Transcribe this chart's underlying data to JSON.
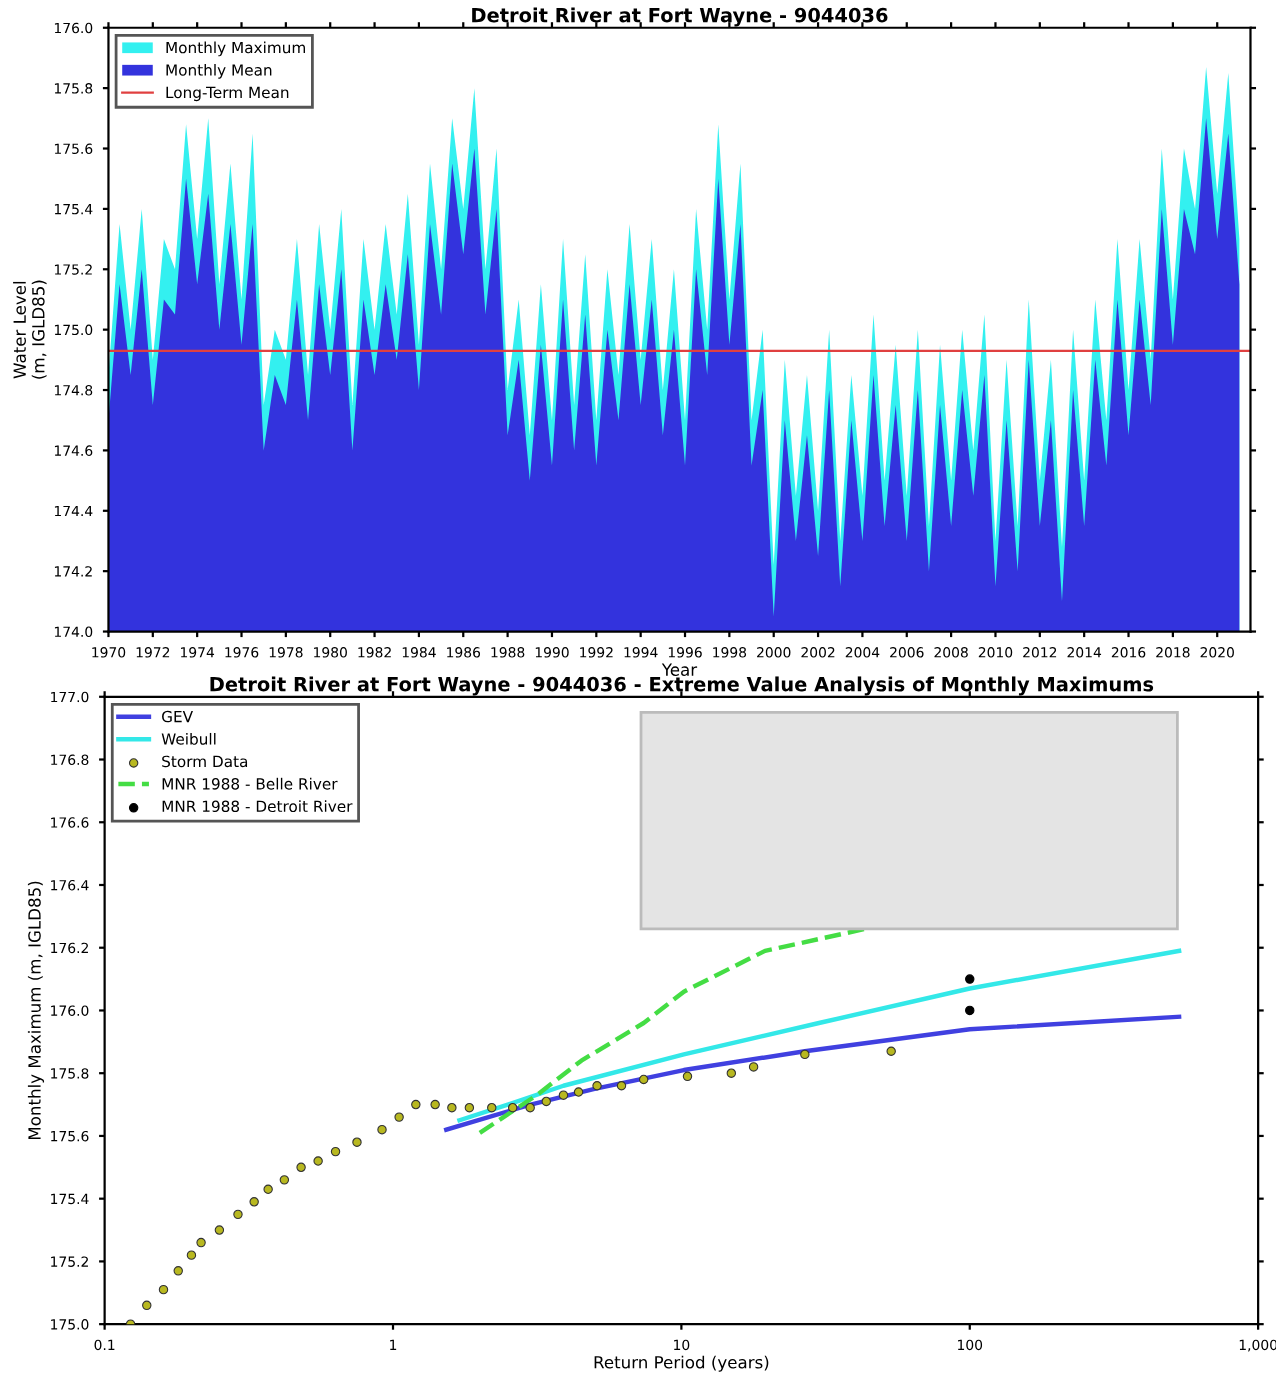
{
  "chart_data": [
    {
      "type": "area",
      "title": "Detroit River at Fort Wayne - 9044036",
      "xlabel": "Year",
      "ylabel": "Water Level\n(m, IGLD85)",
      "x": [
        1970,
        1970.5,
        1971,
        1971.5,
        1972,
        1972.5,
        1973,
        1973.5,
        1974,
        1974.5,
        1975,
        1975.5,
        1976,
        1976.5,
        1977,
        1977.5,
        1978,
        1978.5,
        1979,
        1979.5,
        1980,
        1980.5,
        1981,
        1981.5,
        1982,
        1982.5,
        1983,
        1983.5,
        1984,
        1984.5,
        1985,
        1985.5,
        1986,
        1986.5,
        1987,
        1987.5,
        1988,
        1988.5,
        1989,
        1989.5,
        1990,
        1990.5,
        1991,
        1991.5,
        1992,
        1992.5,
        1993,
        1993.5,
        1994,
        1994.5,
        1995,
        1995.5,
        1996,
        1996.5,
        1997,
        1997.5,
        1998,
        1998.5,
        1999,
        1999.5,
        2000,
        2000.5,
        2001,
        2001.5,
        2002,
        2002.5,
        2003,
        2003.5,
        2004,
        2004.5,
        2005,
        2005.5,
        2006,
        2006.5,
        2007,
        2007.5,
        2008,
        2008.5,
        2009,
        2009.5,
        2010,
        2010.5,
        2011,
        2011.5,
        2012,
        2012.5,
        2013,
        2013.5,
        2014,
        2014.5,
        2015,
        2015.5,
        2016,
        2016.5,
        2017,
        2017.5,
        2018,
        2018.5,
        2019,
        2019.5,
        2020,
        2020.5,
        2021
      ],
      "series": [
        {
          "name": "Monthly Maximum",
          "color": "#33f0f0",
          "values": [
            174.85,
            175.35,
            175.0,
            175.4,
            174.9,
            175.3,
            175.2,
            175.68,
            175.3,
            175.7,
            175.15,
            175.55,
            175.1,
            175.65,
            174.75,
            175.0,
            174.9,
            175.3,
            174.85,
            175.35,
            175.0,
            175.4,
            174.75,
            175.3,
            175.0,
            175.35,
            175.05,
            175.45,
            174.95,
            175.55,
            175.2,
            175.7,
            175.4,
            175.8,
            175.2,
            175.6,
            174.8,
            175.1,
            174.65,
            175.15,
            174.7,
            175.3,
            174.75,
            175.25,
            174.7,
            175.2,
            174.85,
            175.35,
            174.9,
            175.3,
            174.8,
            175.2,
            174.7,
            175.4,
            175.0,
            175.68,
            175.1,
            175.55,
            174.7,
            175.0,
            174.22,
            174.9,
            174.45,
            174.85,
            174.4,
            175.0,
            174.3,
            174.85,
            174.45,
            175.05,
            174.5,
            174.95,
            174.45,
            175.0,
            174.35,
            174.95,
            174.5,
            175.0,
            174.6,
            175.05,
            174.3,
            174.9,
            174.35,
            175.1,
            174.5,
            174.9,
            174.28,
            175.0,
            174.5,
            175.1,
            174.7,
            175.3,
            174.8,
            175.3,
            174.9,
            175.6,
            175.1,
            175.6,
            175.4,
            175.87,
            175.45,
            175.85,
            175.3
          ]
        },
        {
          "name": "Monthly Mean",
          "color": "#3333dd",
          "values": [
            174.7,
            175.15,
            174.85,
            175.2,
            174.75,
            175.1,
            175.05,
            175.5,
            175.15,
            175.45,
            175.0,
            175.35,
            174.95,
            175.35,
            174.6,
            174.85,
            174.75,
            175.1,
            174.7,
            175.15,
            174.85,
            175.2,
            174.6,
            175.1,
            174.85,
            175.15,
            174.9,
            175.25,
            174.8,
            175.35,
            175.05,
            175.55,
            175.25,
            175.6,
            175.05,
            175.4,
            174.65,
            174.9,
            174.5,
            174.95,
            174.55,
            175.1,
            174.6,
            175.05,
            174.55,
            175.0,
            174.7,
            175.15,
            174.75,
            175.1,
            174.65,
            175.0,
            174.55,
            175.2,
            174.85,
            175.5,
            174.95,
            175.35,
            174.55,
            174.8,
            174.05,
            174.7,
            174.3,
            174.65,
            174.25,
            174.8,
            174.15,
            174.7,
            174.3,
            174.85,
            174.35,
            174.75,
            174.3,
            174.8,
            174.2,
            174.75,
            174.35,
            174.8,
            174.45,
            174.85,
            174.15,
            174.7,
            174.2,
            174.9,
            174.35,
            174.7,
            174.1,
            174.8,
            174.35,
            174.9,
            174.55,
            175.1,
            174.65,
            175.1,
            174.75,
            175.4,
            174.95,
            175.4,
            175.25,
            175.7,
            175.3,
            175.65,
            175.15
          ]
        }
      ],
      "ref_lines": [
        {
          "axis": "y",
          "value": 174.93,
          "label": "Long-Term Mean",
          "color": "#e04040"
        }
      ],
      "xlim": [
        1970,
        2021.5
      ],
      "xticks": [
        1970,
        1972,
        1974,
        1976,
        1978,
        1980,
        1982,
        1984,
        1986,
        1988,
        1990,
        1992,
        1994,
        1996,
        1998,
        2000,
        2002,
        2004,
        2006,
        2008,
        2010,
        2012,
        2014,
        2016,
        2018,
        2020
      ],
      "ylim": [
        174.0,
        176.0
      ],
      "yticks": [
        {
          "value": 174.0,
          "label": "174.0"
        },
        {
          "value": 174.2,
          "label": "174.2"
        },
        {
          "value": 174.4,
          "label": "174.4"
        },
        {
          "value": 174.6,
          "label": "174.6"
        },
        {
          "value": 174.8,
          "label": "174.8"
        },
        {
          "value": 175.0,
          "label": "175.0"
        },
        {
          "value": 175.2,
          "label": "175.2"
        },
        {
          "value": 175.4,
          "label": "175.4"
        },
        {
          "value": 175.6,
          "label": "175.6"
        },
        {
          "value": 175.8,
          "label": "175.8"
        },
        {
          "value": 176.0,
          "label": "176.0"
        }
      ],
      "legend": "top left"
    },
    {
      "type": "line",
      "title": "Detroit River at Fort Wayne - 9044036 - Extreme Value Analysis of Monthly Maximums",
      "xlabel": "Return Period (years)",
      "ylabel": "Monthly Maximum (m, IGLD85)",
      "log": "x",
      "series": [
        {
          "name": "GEV",
          "color": "#4040e0",
          "type": "line",
          "line_style": "solid",
          "x": [
            1.53,
            3,
            5,
            10.2,
            26.8,
            100,
            532
          ],
          "values": [
            175.62,
            175.7,
            175.75,
            175.81,
            175.87,
            175.94,
            175.98
          ]
        },
        {
          "name": "Weibull",
          "color": "#33e8e8",
          "type": "line",
          "line_style": "solid",
          "x": [
            1.7,
            2.5,
            3.9,
            10.2,
            30,
            100,
            532
          ],
          "values": [
            175.65,
            175.7,
            175.76,
            175.86,
            175.96,
            176.07,
            176.19
          ]
        },
        {
          "name": "Storm Data",
          "color": "#b8b820",
          "type": "scatter",
          "marker": "circle",
          "x": [
            0.123,
            0.14,
            0.16,
            0.18,
            0.2,
            0.216,
            0.25,
            0.29,
            0.33,
            0.369,
            0.42,
            0.48,
            0.55,
            0.632,
            0.75,
            0.916,
            1.05,
            1.2,
            1.4,
            1.6,
            1.84,
            2.2,
            2.6,
            2.99,
            3.4,
            3.9,
            4.4,
            5.1,
            6.2,
            7.4,
            10.5,
            14.9,
            17.8,
            26.8,
            53.4
          ],
          "values": [
            175.0,
            175.06,
            175.11,
            175.17,
            175.22,
            175.26,
            175.3,
            175.35,
            175.39,
            175.43,
            175.46,
            175.5,
            175.52,
            175.55,
            175.58,
            175.62,
            175.66,
            175.7,
            175.7,
            175.69,
            175.69,
            175.69,
            175.69,
            175.69,
            175.71,
            175.73,
            175.74,
            175.76,
            175.76,
            175.78,
            175.79,
            175.8,
            175.82,
            175.86,
            175.87
          ]
        },
        {
          "name": "MNR 1988 - Belle River",
          "color": "#44dd44",
          "type": "line",
          "line_style": "dashed",
          "x": [
            2.0,
            3.15,
            4.5,
            7.4,
            10.2,
            19.5,
            43.4
          ],
          "values": [
            175.61,
            175.73,
            175.84,
            175.96,
            176.06,
            176.19,
            176.26
          ]
        },
        {
          "name": "MNR 1988 - Detroit River",
          "color": "#000000",
          "type": "scatter",
          "marker": "circle",
          "x": [
            100,
            100
          ],
          "values": [
            176.1,
            176.0
          ]
        }
      ],
      "xlim": [
        0.1,
        1000
      ],
      "xticks": [
        0.1,
        1,
        10,
        100,
        {
          "value": 1000,
          "label": "1,000"
        }
      ],
      "ylim": [
        175.0,
        177.0
      ],
      "yticks": [
        {
          "value": 175.0,
          "label": "175.0"
        },
        {
          "value": 175.2,
          "label": "175.2"
        },
        {
          "value": 175.4,
          "label": "175.4"
        },
        {
          "value": 175.6,
          "label": "175.6"
        },
        {
          "value": 175.8,
          "label": "175.8"
        },
        {
          "value": 176.0,
          "label": "176.0"
        },
        {
          "value": 176.2,
          "label": "176.2"
        },
        {
          "value": 176.4,
          "label": "176.4"
        },
        {
          "value": 176.6,
          "label": "176.6"
        },
        {
          "value": 176.8,
          "label": "176.8"
        },
        {
          "value": 177.0,
          "label": "177.0"
        }
      ],
      "legend": "top left"
    }
  ]
}
